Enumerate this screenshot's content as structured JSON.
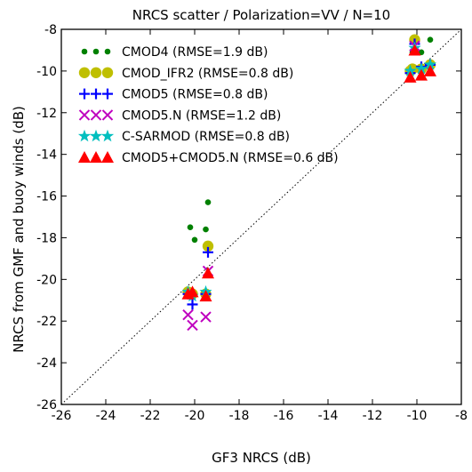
{
  "chart_data": {
    "type": "scatter",
    "title": "NRCS scatter / Polarization=VV / N=10",
    "xlabel": "GF3 NRCS (dB)",
    "ylabel": "NRCS from GMF and buoy winds (dB)",
    "xlim": [
      -26,
      -8
    ],
    "ylim": [
      -26,
      -8
    ],
    "xticks": [
      -26,
      -24,
      -22,
      -20,
      -18,
      -16,
      -14,
      -12,
      -10,
      -8
    ],
    "yticks": [
      -26,
      -24,
      -22,
      -20,
      -18,
      -16,
      -14,
      -12,
      -10,
      -8
    ],
    "xtick_labels": [
      "-26",
      "-24",
      "-22",
      "-20",
      "-18",
      "-16",
      "-14",
      "-12",
      "-10",
      "-8"
    ],
    "ytick_labels": [
      "-26",
      "-24",
      "-22",
      "-20",
      "-18",
      "-16",
      "-14",
      "-12",
      "-10",
      "-8"
    ],
    "grid": false,
    "legend_position": "top-left",
    "reference_line": "1:1 dotted diagonal",
    "series": [
      {
        "name": "CMOD4 (RMSE=1.9 dB)",
        "marker": "dot",
        "color": "#008000",
        "x": [
          -20.2,
          -20.0,
          -19.5,
          -19.4,
          -10.2,
          -10.1,
          -9.8,
          -9.4
        ],
        "y": [
          -17.5,
          -18.1,
          -17.6,
          -16.3,
          -9.1,
          -8.4,
          -9.1,
          -8.5
        ]
      },
      {
        "name": "CMOD_IFR2 (RMSE=0.8 dB)",
        "marker": "circle",
        "color": "#bfbf00",
        "x": [
          -20.3,
          -20.1,
          -19.5,
          -19.4,
          -10.3,
          -10.2,
          -10.1,
          -9.8,
          -9.4
        ],
        "y": [
          -20.6,
          -20.7,
          -20.7,
          -18.4,
          -10.0,
          -9.9,
          -8.5,
          -9.9,
          -9.7
        ]
      },
      {
        "name": "CMOD5 (RMSE=0.8 dB)",
        "marker": "plus",
        "color": "#0000ff",
        "x": [
          -20.3,
          -20.1,
          -19.5,
          -19.4,
          -10.3,
          -10.1,
          -9.8,
          -9.4
        ],
        "y": [
          -20.7,
          -21.2,
          -20.7,
          -18.7,
          -10.1,
          -8.7,
          -9.8,
          -9.7
        ]
      },
      {
        "name": "CMOD5.N (RMSE=1.2 dB)",
        "marker": "x",
        "color": "#bf00bf",
        "x": [
          -20.3,
          -20.1,
          -19.5,
          -19.4,
          -10.1
        ],
        "y": [
          -21.7,
          -22.2,
          -21.8,
          -19.6,
          -8.8
        ]
      },
      {
        "name": "C-SARMOD (RMSE=0.8 dB)",
        "marker": "star",
        "color": "#00bfbf",
        "x": [
          -20.3,
          -20.1,
          -19.5,
          -10.3,
          -10.1,
          -9.8,
          -9.4
        ],
        "y": [
          -20.6,
          -20.8,
          -20.6,
          -10.0,
          -8.9,
          -9.9,
          -9.7
        ]
      },
      {
        "name": "CMOD5+CMOD5.N (RMSE=0.6 dB)",
        "marker": "triangle",
        "color": "#ff0000",
        "x": [
          -20.3,
          -20.1,
          -19.5,
          -19.4,
          -10.3,
          -10.1,
          -9.8,
          -9.4
        ],
        "y": [
          -20.7,
          -20.6,
          -20.8,
          -19.7,
          -10.3,
          -9.0,
          -10.2,
          -10.0
        ]
      }
    ]
  }
}
